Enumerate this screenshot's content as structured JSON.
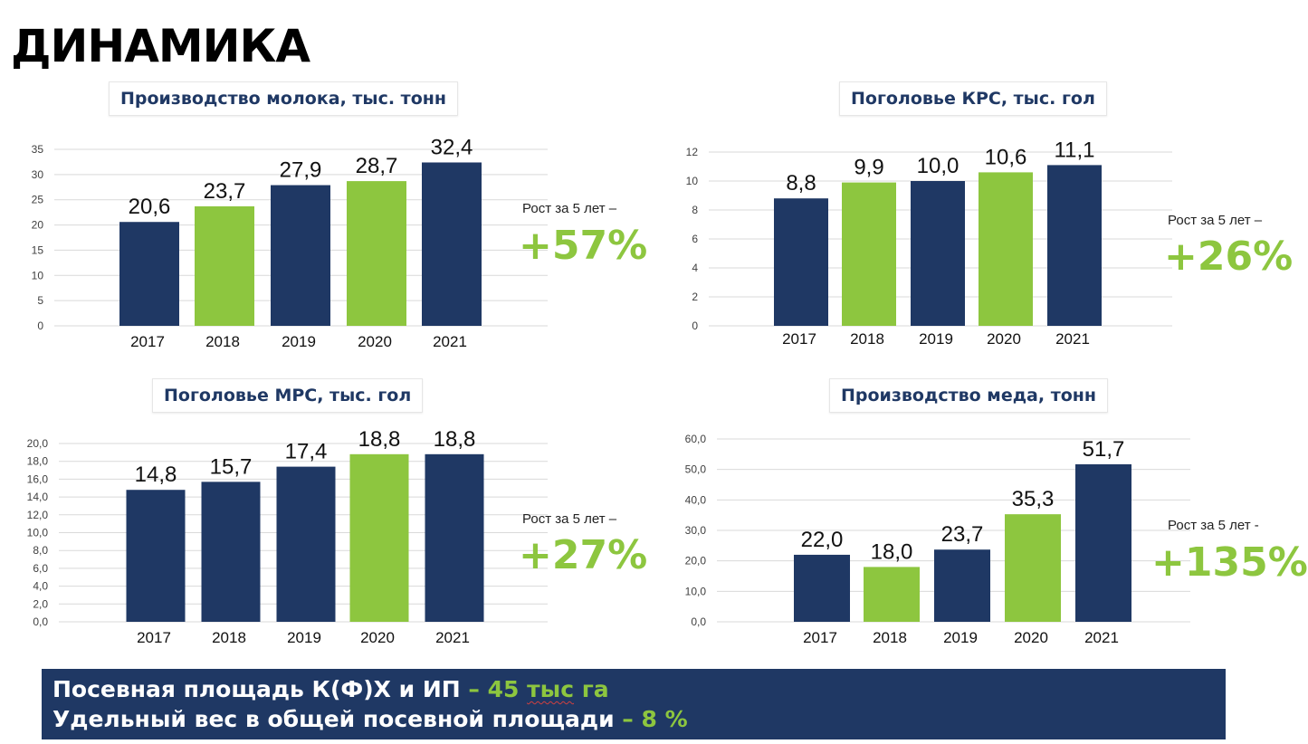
{
  "title": "ДИНАМИКА",
  "colors": {
    "navy": "#1f3864",
    "green": "#8dc63f",
    "grid": "#d9d9d9"
  },
  "chart_data": [
    {
      "type": "bar",
      "title": "Производство молока, тыс. тонн",
      "categories": [
        "2017",
        "2018",
        "2019",
        "2020",
        "2021"
      ],
      "values": [
        20.6,
        23.7,
        27.9,
        28.7,
        32.4
      ],
      "data_labels": [
        "20,6",
        "23,7",
        "27,9",
        "28,7",
        "32,4"
      ],
      "bar_colors": [
        "#1f3864",
        "#8dc63f",
        "#1f3864",
        "#8dc63f",
        "#1f3864"
      ],
      "ylim": [
        0,
        35
      ],
      "yticks": [
        0,
        5,
        10,
        15,
        20,
        25,
        30,
        35
      ],
      "ytick_labels": [
        "0",
        "5",
        "10",
        "15",
        "20",
        "25",
        "30",
        "35"
      ],
      "grid": true,
      "growth_label": "Рост за 5 лет –",
      "growth_value": "+57%"
    },
    {
      "type": "bar",
      "title": "Поголовье КРС, тыс. гол",
      "categories": [
        "2017",
        "2018",
        "2019",
        "2020",
        "2021"
      ],
      "values": [
        8.8,
        9.9,
        10.0,
        10.6,
        11.1
      ],
      "data_labels": [
        "8,8",
        "9,9",
        "10,0",
        "10,6",
        "11,1"
      ],
      "bar_colors": [
        "#1f3864",
        "#8dc63f",
        "#1f3864",
        "#8dc63f",
        "#1f3864"
      ],
      "ylim": [
        0,
        12
      ],
      "yticks": [
        0,
        2,
        4,
        6,
        8,
        10,
        12
      ],
      "ytick_labels": [
        "0",
        "2",
        "4",
        "6",
        "8",
        "10",
        "12"
      ],
      "grid": true,
      "growth_label": "Рост за 5 лет –",
      "growth_value": "+26%"
    },
    {
      "type": "bar",
      "title": "Поголовье МРС, тыс. гол",
      "categories": [
        "2017",
        "2018",
        "2019",
        "2020",
        "2021"
      ],
      "values": [
        14.8,
        15.7,
        17.4,
        18.8,
        18.8
      ],
      "data_labels": [
        "14,8",
        "15,7",
        "17,4",
        "18,8",
        "18,8"
      ],
      "bar_colors": [
        "#1f3864",
        "#1f3864",
        "#1f3864",
        "#8dc63f",
        "#1f3864"
      ],
      "ylim": [
        0,
        20
      ],
      "yticks": [
        0,
        2,
        4,
        6,
        8,
        10,
        12,
        14,
        16,
        18,
        20
      ],
      "ytick_labels": [
        "0,0",
        "2,0",
        "4,0",
        "6,0",
        "8,0",
        "10,0",
        "12,0",
        "14,0",
        "16,0",
        "18,0",
        "20,0"
      ],
      "grid": true,
      "growth_label": "Рост за 5 лет –",
      "growth_value": "+27%"
    },
    {
      "type": "bar",
      "title": "Производство меда, тонн",
      "categories": [
        "2017",
        "2018",
        "2019",
        "2020",
        "2021"
      ],
      "values": [
        22.0,
        18.0,
        23.7,
        35.3,
        51.7
      ],
      "data_labels": [
        "22,0",
        "18,0",
        "23,7",
        "35,3",
        "51,7"
      ],
      "bar_colors": [
        "#1f3864",
        "#8dc63f",
        "#1f3864",
        "#8dc63f",
        "#1f3864"
      ],
      "ylim": [
        0,
        60
      ],
      "yticks": [
        0,
        10,
        20,
        30,
        40,
        50,
        60
      ],
      "ytick_labels": [
        "0,0",
        "10,0",
        "20,0",
        "30,0",
        "40,0",
        "50,0",
        "60,0"
      ],
      "grid": true,
      "growth_label": "Рост за 5 лет -",
      "growth_value": "+135%"
    }
  ],
  "footer": {
    "line1_text": "Посевная площадь К(Ф)Х и ИП",
    "line1_dash": " – 45 ",
    "line1_unit_a": "тыс",
    "line1_unit_b": " га",
    "line2_text": "Удельный вес в общей посевной площади",
    "line2_value": " – 8 %"
  }
}
